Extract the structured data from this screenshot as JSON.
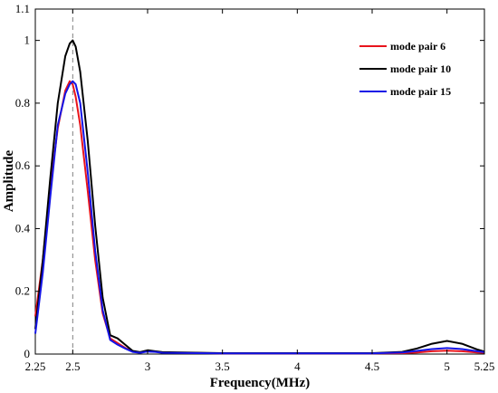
{
  "chart_data": {
    "type": "line",
    "title": "",
    "xlabel": "Frequency(MHz)",
    "ylabel": "Amplitude",
    "xlim": [
      2.25,
      5.25
    ],
    "ylim": [
      0,
      1.1
    ],
    "xticks": [
      2.25,
      2.5,
      3,
      3.5,
      4,
      4.5,
      5,
      5.25
    ],
    "xtick_labels": [
      "2.25",
      "2.5",
      "3",
      "3.5",
      "4",
      "4.5",
      "5",
      "5.25"
    ],
    "yticks": [
      0,
      0.2,
      0.4,
      0.6,
      0.8,
      1,
      1.1
    ],
    "ytick_labels": [
      "0",
      "0.2",
      "0.4",
      "0.6",
      "0.8",
      "1",
      "1.1"
    ],
    "grid": false,
    "legend_position": "top-right",
    "reference_line": {
      "x": 2.5,
      "style": "dashed"
    },
    "series": [
      {
        "name": "mode pair 6",
        "color": "#e8141c",
        "x": [
          2.25,
          2.3,
          2.35,
          2.4,
          2.45,
          2.48,
          2.5,
          2.52,
          2.55,
          2.6,
          2.65,
          2.7,
          2.75,
          2.8,
          2.85,
          2.9,
          2.95,
          3.0,
          3.05,
          3.1,
          3.5,
          4.0,
          4.5,
          4.7,
          4.8,
          4.9,
          5.0,
          5.1,
          5.2,
          5.25
        ],
        "y": [
          0.12,
          0.3,
          0.53,
          0.72,
          0.84,
          0.87,
          0.86,
          0.82,
          0.73,
          0.52,
          0.3,
          0.13,
          0.05,
          0.035,
          0.02,
          0.008,
          0.005,
          0.01,
          0.008,
          0.005,
          0.002,
          0.002,
          0.002,
          0.003,
          0.005,
          0.009,
          0.011,
          0.009,
          0.005,
          0.004
        ]
      },
      {
        "name": "mode pair 10",
        "color": "#000000",
        "x": [
          2.25,
          2.3,
          2.35,
          2.4,
          2.45,
          2.48,
          2.5,
          2.52,
          2.55,
          2.6,
          2.65,
          2.7,
          2.75,
          2.8,
          2.85,
          2.9,
          2.95,
          3.0,
          3.05,
          3.1,
          3.5,
          4.0,
          4.5,
          4.7,
          4.8,
          4.9,
          5.0,
          5.1,
          5.2,
          5.25
        ],
        "y": [
          0.08,
          0.3,
          0.56,
          0.8,
          0.95,
          0.99,
          1.0,
          0.98,
          0.9,
          0.68,
          0.41,
          0.18,
          0.06,
          0.05,
          0.03,
          0.01,
          0.006,
          0.012,
          0.009,
          0.006,
          0.003,
          0.003,
          0.003,
          0.007,
          0.018,
          0.033,
          0.042,
          0.033,
          0.015,
          0.008
        ]
      },
      {
        "name": "mode pair 15",
        "color": "#1414e6",
        "x": [
          2.25,
          2.3,
          2.35,
          2.4,
          2.45,
          2.48,
          2.5,
          2.52,
          2.55,
          2.6,
          2.65,
          2.7,
          2.75,
          2.8,
          2.85,
          2.9,
          2.95,
          3.0,
          3.05,
          3.1,
          3.5,
          4.0,
          4.5,
          4.7,
          4.8,
          4.9,
          5.0,
          5.1,
          5.2,
          5.25
        ],
        "y": [
          0.065,
          0.26,
          0.5,
          0.73,
          0.83,
          0.86,
          0.87,
          0.86,
          0.8,
          0.58,
          0.33,
          0.14,
          0.045,
          0.03,
          0.018,
          0.007,
          0.004,
          0.008,
          0.007,
          0.004,
          0.002,
          0.002,
          0.002,
          0.005,
          0.01,
          0.016,
          0.019,
          0.016,
          0.009,
          0.006
        ]
      }
    ]
  }
}
